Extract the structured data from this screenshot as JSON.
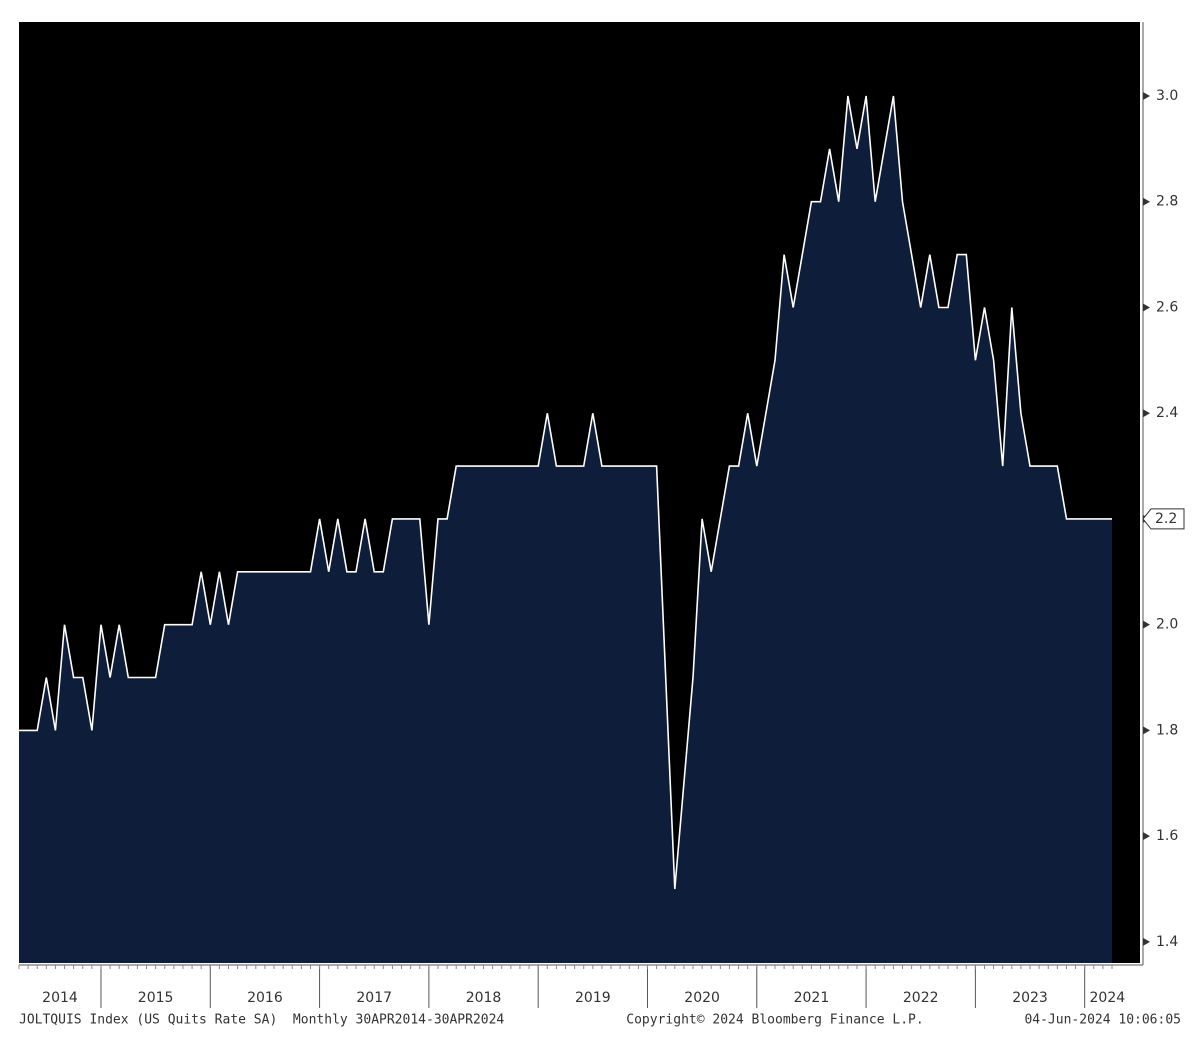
{
  "chart_data": {
    "type": "area",
    "color": "#0d1d3a",
    "line_color": "#ffffff",
    "year_labels": [
      "2014",
      "2015",
      "2016",
      "2017",
      "2018",
      "2019",
      "2020",
      "2021",
      "2022",
      "2023",
      "2024"
    ],
    "values": [
      1.8,
      1.8,
      1.8,
      1.9,
      1.8,
      2.0,
      1.9,
      1.9,
      1.8,
      2.0,
      1.9,
      2.0,
      1.9,
      1.9,
      1.9,
      1.9,
      2.0,
      2.0,
      2.0,
      2.0,
      2.1,
      2.0,
      2.1,
      2.0,
      2.1,
      2.1,
      2.1,
      2.1,
      2.1,
      2.1,
      2.1,
      2.1,
      2.1,
      2.2,
      2.1,
      2.2,
      2.1,
      2.1,
      2.2,
      2.1,
      2.1,
      2.2,
      2.2,
      2.2,
      2.2,
      2.0,
      2.2,
      2.2,
      2.3,
      2.3,
      2.3,
      2.3,
      2.3,
      2.3,
      2.3,
      2.3,
      2.3,
      2.3,
      2.4,
      2.3,
      2.3,
      2.3,
      2.3,
      2.4,
      2.3,
      2.3,
      2.3,
      2.3,
      2.3,
      2.3,
      2.3,
      1.9,
      1.5,
      1.7,
      1.9,
      2.2,
      2.1,
      2.2,
      2.3,
      2.3,
      2.4,
      2.3,
      2.4,
      2.5,
      2.7,
      2.6,
      2.7,
      2.8,
      2.8,
      2.9,
      2.8,
      3.0,
      2.9,
      3.0,
      2.8,
      2.9,
      3.0,
      2.8,
      2.7,
      2.6,
      2.7,
      2.6,
      2.6,
      2.7,
      2.7,
      2.5,
      2.6,
      2.5,
      2.3,
      2.6,
      2.4,
      2.3,
      2.3,
      2.3,
      2.3,
      2.2,
      2.2,
      2.2,
      2.2,
      2.2,
      2.2
    ],
    "ylim": [
      1.36,
      3.14
    ],
    "yticks": [
      1.4,
      1.6,
      1.8,
      {
        "value": 2,
        "label": "2.0"
      },
      2.2,
      2.4,
      2.6,
      2.8,
      {
        "value": 3,
        "label": "3.0"
      }
    ],
    "footer": {
      "left": "JOLTQUIS Index (US Quits Rate SA)  Monthly 30APR2014-30APR2024",
      "center": "Copyright© 2024 Bloomberg Finance L.P.",
      "right": "04-Jun-2024 10:06:05"
    }
  }
}
